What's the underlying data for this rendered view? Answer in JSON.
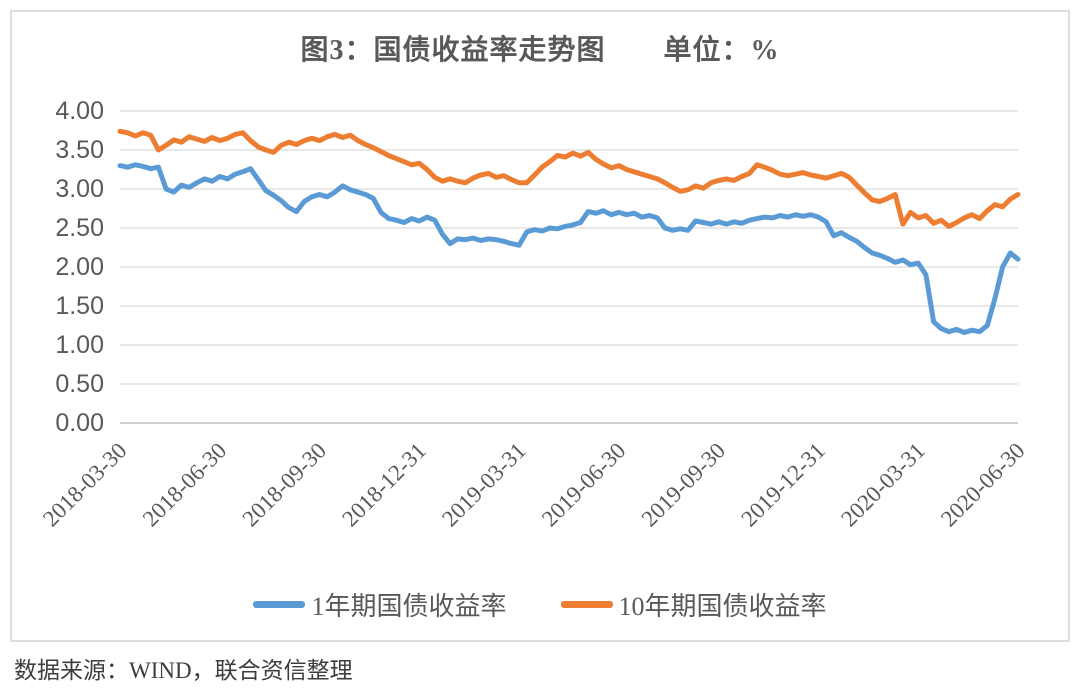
{
  "figure": {
    "title": "图3：国债收益率走势图　　单位：%",
    "source_note": "数据来源：WIND，联合资信整理"
  },
  "chart_data": {
    "type": "line",
    "title": "图3：国债收益率走势图",
    "unit_label": "单位：%",
    "grid": true,
    "legend_position": "bottom",
    "colors": {
      "grid": "#d9d9d9",
      "axis": "#bfbfbf",
      "text": "#595959"
    },
    "y_axis": {
      "min": 0,
      "max": 4,
      "step": 0.5,
      "tick_labels": [
        "4.00",
        "3.50",
        "3.00",
        "2.50",
        "2.00",
        "1.50",
        "1.00",
        "0.50",
        "0.00"
      ]
    },
    "x_axis": {
      "start": "2018-03-30",
      "end": "2020-06-30",
      "tick_labels": [
        "2018-03-30",
        "2018-06-30",
        "2018-09-30",
        "2018-12-31",
        "2019-03-31",
        "2019-06-30",
        "2019-09-30",
        "2019-12-31",
        "2020-03-31",
        "2020-06-30"
      ],
      "sampling": "weekly (values estimated from plot)"
    },
    "series": [
      {
        "name": "1年期国债收益率",
        "color": "#5B9BD5",
        "values": [
          3.3,
          3.28,
          3.31,
          3.29,
          3.26,
          3.28,
          3.0,
          2.96,
          3.05,
          3.02,
          3.08,
          3.13,
          3.1,
          3.16,
          3.13,
          3.19,
          3.22,
          3.26,
          3.12,
          2.98,
          2.92,
          2.85,
          2.76,
          2.71,
          2.84,
          2.9,
          2.93,
          2.9,
          2.96,
          3.04,
          2.99,
          2.96,
          2.93,
          2.88,
          2.7,
          2.62,
          2.6,
          2.57,
          2.62,
          2.59,
          2.64,
          2.6,
          2.42,
          2.3,
          2.36,
          2.35,
          2.37,
          2.34,
          2.36,
          2.35,
          2.33,
          2.3,
          2.28,
          2.45,
          2.48,
          2.46,
          2.5,
          2.49,
          2.52,
          2.54,
          2.57,
          2.71,
          2.69,
          2.72,
          2.67,
          2.7,
          2.67,
          2.69,
          2.64,
          2.66,
          2.63,
          2.5,
          2.47,
          2.49,
          2.47,
          2.59,
          2.57,
          2.55,
          2.58,
          2.55,
          2.58,
          2.56,
          2.6,
          2.62,
          2.64,
          2.63,
          2.66,
          2.64,
          2.67,
          2.65,
          2.67,
          2.64,
          2.58,
          2.4,
          2.44,
          2.38,
          2.33,
          2.25,
          2.18,
          2.15,
          2.11,
          2.06,
          2.09,
          2.03,
          2.05,
          1.9,
          1.3,
          1.21,
          1.17,
          1.2,
          1.16,
          1.19,
          1.17,
          1.25,
          1.6,
          2.0,
          2.18,
          2.1
        ]
      },
      {
        "name": "10年期国债收益率",
        "color": "#ED7D31",
        "values": [
          3.74,
          3.72,
          3.68,
          3.72,
          3.69,
          3.5,
          3.56,
          3.63,
          3.6,
          3.67,
          3.64,
          3.61,
          3.66,
          3.62,
          3.65,
          3.7,
          3.72,
          3.62,
          3.54,
          3.5,
          3.47,
          3.56,
          3.6,
          3.57,
          3.62,
          3.65,
          3.62,
          3.67,
          3.7,
          3.66,
          3.69,
          3.62,
          3.57,
          3.53,
          3.48,
          3.43,
          3.39,
          3.35,
          3.31,
          3.33,
          3.25,
          3.15,
          3.1,
          3.13,
          3.1,
          3.08,
          3.14,
          3.18,
          3.2,
          3.15,
          3.17,
          3.12,
          3.08,
          3.08,
          3.18,
          3.28,
          3.35,
          3.43,
          3.41,
          3.46,
          3.42,
          3.47,
          3.38,
          3.32,
          3.27,
          3.3,
          3.25,
          3.22,
          3.19,
          3.16,
          3.13,
          3.08,
          3.02,
          2.97,
          2.99,
          3.04,
          3.01,
          3.08,
          3.11,
          3.13,
          3.11,
          3.16,
          3.2,
          3.31,
          3.28,
          3.24,
          3.19,
          3.17,
          3.19,
          3.21,
          3.18,
          3.16,
          3.14,
          3.17,
          3.2,
          3.15,
          3.05,
          2.95,
          2.86,
          2.84,
          2.88,
          2.93,
          2.55,
          2.7,
          2.63,
          2.66,
          2.56,
          2.6,
          2.52,
          2.57,
          2.63,
          2.67,
          2.62,
          2.72,
          2.8,
          2.77,
          2.87,
          2.93
        ]
      }
    ]
  }
}
